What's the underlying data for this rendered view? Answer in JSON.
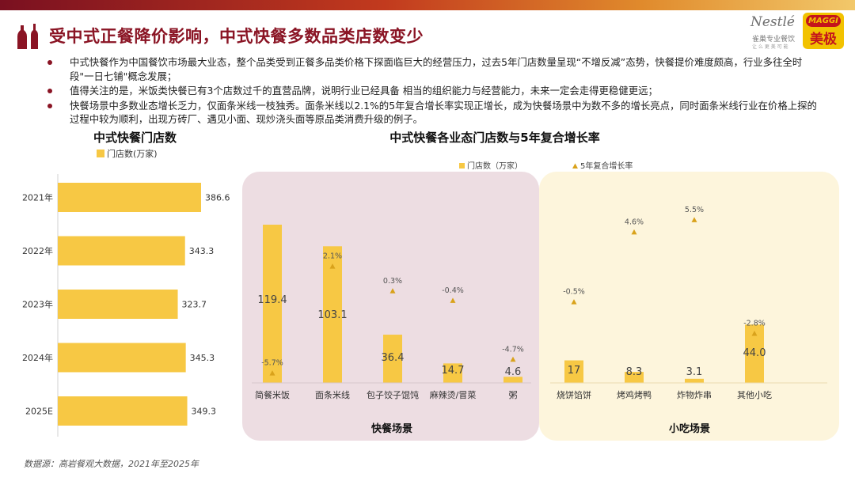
{
  "page": {
    "title": "受中式正餐降价影响，中式快餐多数品类店数变少",
    "bullets": [
      "中式快餐作为中国餐饮市场最大业态，整个品类受到正餐多品类价格下探面临巨大的经营压力，过去5年门店数量呈现“不增反减”态势，快餐提价难度颇高，行业多往全时段\"一日七铺\"概念发展；",
      "值得关注的是，米饭类快餐已有3个店数过千的直营品牌，说明行业已经具备 相当的组织能力与经营能力，未来一定会走得更稳健更远；",
      "快餐场景中多数业态增长乏力，仅面条米线一枝独秀。面条米线以2.1%的5年复合增长率实现正增长，成为快餐场景中为数不多的增长亮点，同时面条米线行业在价格上探的过程中较为顺利，出现方砖厂、遇见小面、现炒浇头面等原品类消费升级的例子。"
    ],
    "source": "数据源：高岩餐观大数据，2021年至2025年"
  },
  "logos": {
    "nestle_text": "Nestlé",
    "nestle_sub": "雀巢专业餐饮",
    "nestle_tiny": "让 么 更 美 可 能",
    "maggi_text": "MAGGI",
    "maggi_cn": "美极"
  },
  "colors": {
    "bar": "#f7c844",
    "marker": "#d9a21b",
    "title": "#8a1424",
    "panel_fast": "#eddde2",
    "panel_snack": "#fdf5dc"
  },
  "chart_data": [
    {
      "type": "bar",
      "orientation": "horizontal",
      "title": "中式快餐门店数",
      "legend": [
        "门店数(万家)"
      ],
      "categories": [
        "2021年",
        "2022年",
        "2023年",
        "2024年",
        "2025E"
      ],
      "values": [
        386.6,
        343.3,
        323.7,
        345.3,
        349.3
      ],
      "value_labels": [
        "386.6",
        "343.3",
        "323.7",
        "345.3",
        "349.3"
      ]
    },
    {
      "type": "bar",
      "title": "中式快餐各业态门店数与5年复合增长率",
      "legend": [
        "门店数（万家）",
        "5年复合增长率"
      ],
      "categories": [
        "简餐米饭",
        "面条米线",
        "包子饺子馄饨",
        "麻辣烫/冒菜",
        "粥",
        "烧饼馅饼",
        "烤鸡烤鸭",
        "炸物炸串",
        "其他小吃"
      ],
      "series": [
        {
          "name": "门店数（万家）",
          "values": [
            119.4,
            103.1,
            36.4,
            14.7,
            4.6,
            17,
            8.3,
            3.1,
            44.0
          ],
          "labels": [
            "119.4",
            "103.1",
            "36.4",
            "14.7",
            "4.6",
            "17",
            "8.3",
            "3.1",
            "44.0"
          ]
        },
        {
          "name": "5年复合增长率",
          "values": [
            -5.7,
            2.1,
            0.3,
            -0.4,
            -4.7,
            -0.5,
            4.6,
            5.5,
            -2.8
          ],
          "labels": [
            "-5.7%",
            "2.1%",
            "0.3%",
            "-0.4%",
            "-4.7%",
            "-0.5%",
            "4.6%",
            "5.5%",
            "-2.8%"
          ]
        }
      ],
      "groups": [
        {
          "name": "快餐场景",
          "categories": [
            "简餐米饭",
            "面条米线",
            "包子饺子馄饨",
            "麻辣烫/冒菜",
            "粥"
          ]
        },
        {
          "name": "小吃场景",
          "categories": [
            "烧饼馅饼",
            "烤鸡烤鸭",
            "炸物炸串",
            "其他小吃"
          ]
        }
      ]
    }
  ]
}
